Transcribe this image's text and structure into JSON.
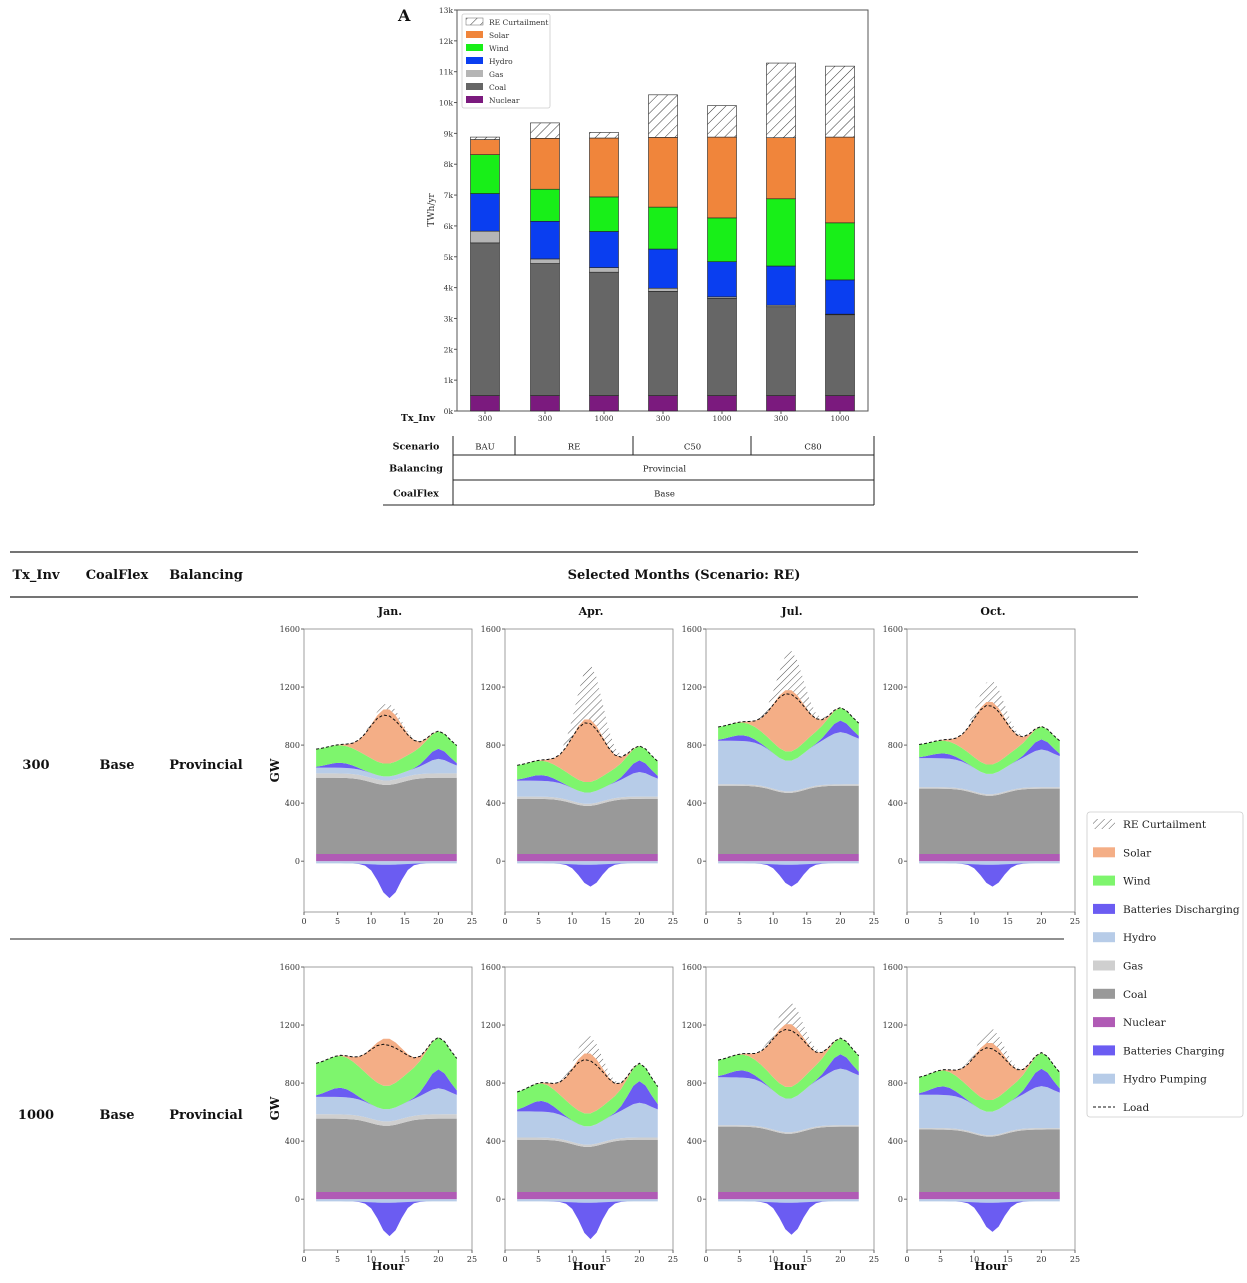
{
  "panel_label": "A",
  "chart_data": [
    {
      "type": "bar",
      "stacked": true,
      "ylabel": "TWh/yr",
      "ylim": [
        0,
        13000
      ],
      "yticks": [
        "0k",
        "1k",
        "2k",
        "3k",
        "4k",
        "5k",
        "6k",
        "7k",
        "8k",
        "9k",
        "10k",
        "11k",
        "12k",
        "13k"
      ],
      "categories": [
        "300",
        "300",
        "1000",
        "300",
        "1000",
        "300",
        "1000"
      ],
      "x_row_label": "Tx_Inv",
      "table": {
        "rows": [
          {
            "label": "Scenario",
            "groups": [
              {
                "text": "BAU",
                "span": 1
              },
              {
                "text": "RE",
                "span": 2
              },
              {
                "text": "C50",
                "span": 2
              },
              {
                "text": "C80",
                "span": 2
              }
            ]
          },
          {
            "label": "Balancing",
            "groups": [
              {
                "text": "Provincial",
                "span": 7
              }
            ]
          },
          {
            "label": "CoalFlex",
            "groups": [
              {
                "text": "Base",
                "span": 7
              }
            ]
          }
        ]
      },
      "legend": [
        "RE Curtailment",
        "Solar",
        "Wind",
        "Hydro",
        "Gas",
        "Coal",
        "Nuclear"
      ],
      "legend_position": "top-left",
      "series": [
        {
          "name": "Nuclear",
          "color": "#7b1a7e",
          "values": [
            500,
            500,
            500,
            500,
            500,
            500,
            500
          ]
        },
        {
          "name": "Coal",
          "color": "#666666",
          "values": [
            4950,
            4280,
            4000,
            3380,
            3150,
            2880,
            2620
          ]
        },
        {
          "name": "Gas",
          "color": "#b5b5b5",
          "values": [
            380,
            150,
            150,
            100,
            50,
            50,
            20
          ]
        },
        {
          "name": "Hydro",
          "color": "#0a3ef0",
          "values": [
            1220,
            1220,
            1170,
            1270,
            1140,
            1270,
            1110
          ]
        },
        {
          "name": "Wind",
          "color": "#18ef18",
          "values": [
            1260,
            1040,
            1120,
            1360,
            1420,
            2180,
            1850
          ]
        },
        {
          "name": "Solar",
          "color": "#f0853b",
          "values": [
            490,
            1650,
            1910,
            2260,
            2620,
            1980,
            2780
          ]
        },
        {
          "name": "RE Curtailment",
          "color": "hatch",
          "values": [
            80,
            500,
            180,
            1380,
            1020,
            2420,
            2300
          ]
        }
      ]
    },
    {
      "type": "area",
      "title": "Selected Months (Scenario: RE)",
      "header_columns": [
        "Tx_Inv",
        "CoalFlex",
        "Balancing"
      ],
      "rows": [
        {
          "tx_inv": "300",
          "coalflex": "Base",
          "balancing": "Provincial"
        },
        {
          "tx_inv": "1000",
          "coalflex": "Base",
          "balancing": "Provincial"
        }
      ],
      "months": [
        "Jan.",
        "Apr.",
        "Jul.",
        "Oct."
      ],
      "xlabel": "Hour",
      "ylabel": "GW",
      "xlim": [
        0,
        25
      ],
      "ylim": [
        -350,
        1600
      ],
      "xticks": [
        "0",
        "5",
        "10",
        "15",
        "20",
        "25"
      ],
      "yticks": [
        "0",
        "400",
        "800",
        "1200",
        "1600"
      ],
      "legend": [
        "RE Curtailment",
        "Solar",
        "Wind",
        "Batteries Discharging",
        "Hydro",
        "Gas",
        "Coal",
        "Nuclear",
        "Batteries Charging",
        "Hydro Pumping",
        "Load"
      ],
      "legend_position": "right",
      "colors": {
        "Nuclear": "#b05bb5",
        "Coal": "#999999",
        "Gas": "#cfcfcf",
        "Hydro": "#b7cce8",
        "Batteries Discharging": "#6b5cf2",
        "Wind": "#7ef56d",
        "Solar": "#f4ae86",
        "Batteries Charging": "#6b5cf2",
        "Hydro Pumping": "#b7cce8"
      }
    }
  ]
}
